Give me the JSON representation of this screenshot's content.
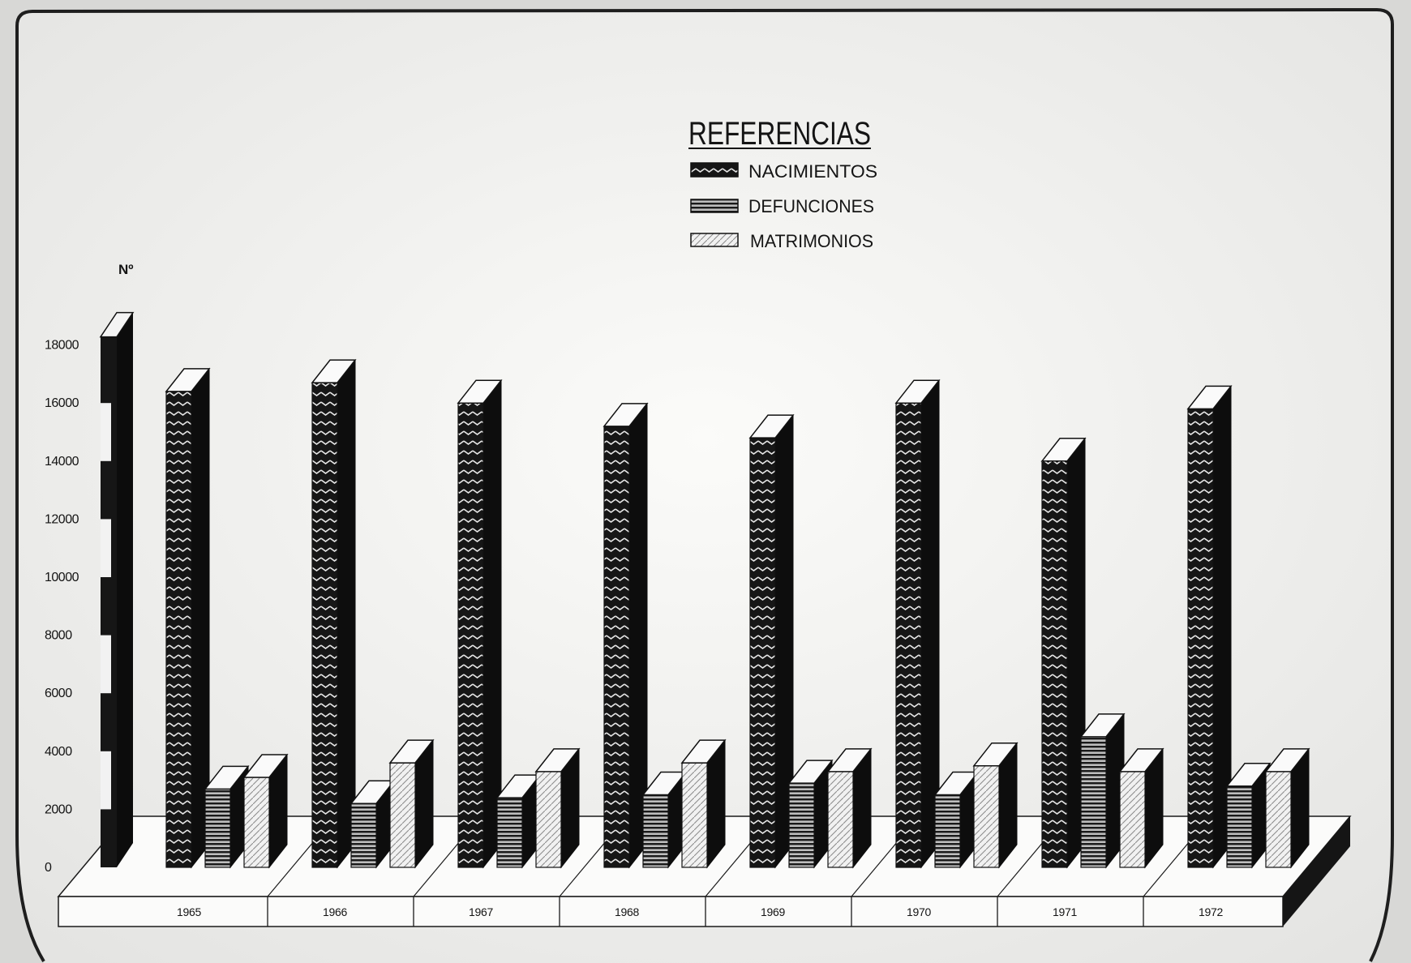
{
  "chart_data": {
    "type": "bar",
    "legend_title": "REFERENCIAS",
    "legend_position": "top-center",
    "ylabel": "Nº",
    "categories": [
      "1965",
      "1966",
      "1967",
      "1968",
      "1969",
      "1970",
      "1971",
      "1972"
    ],
    "series": [
      {
        "name": "NACIMIENTOS",
        "color": "#161616",
        "values": [
          16400,
          16700,
          16000,
          15200,
          14800,
          16000,
          14000,
          15800
        ]
      },
      {
        "name": "DEFUNCIONES",
        "color": "#bdbdbd",
        "values": [
          2700,
          2200,
          2400,
          2500,
          2900,
          2500,
          4500,
          2800
        ]
      },
      {
        "name": "MATRIMONIOS",
        "color": "#f1f1f1",
        "values": [
          3100,
          3600,
          3300,
          3600,
          3300,
          3500,
          3300,
          3300
        ]
      }
    ],
    "yticks": [
      "0",
      "2000",
      "4000",
      "6000",
      "8000",
      "10000",
      "12000",
      "14000",
      "16000",
      "18000"
    ],
    "ylim": [
      0,
      18000
    ],
    "grid": false
  }
}
